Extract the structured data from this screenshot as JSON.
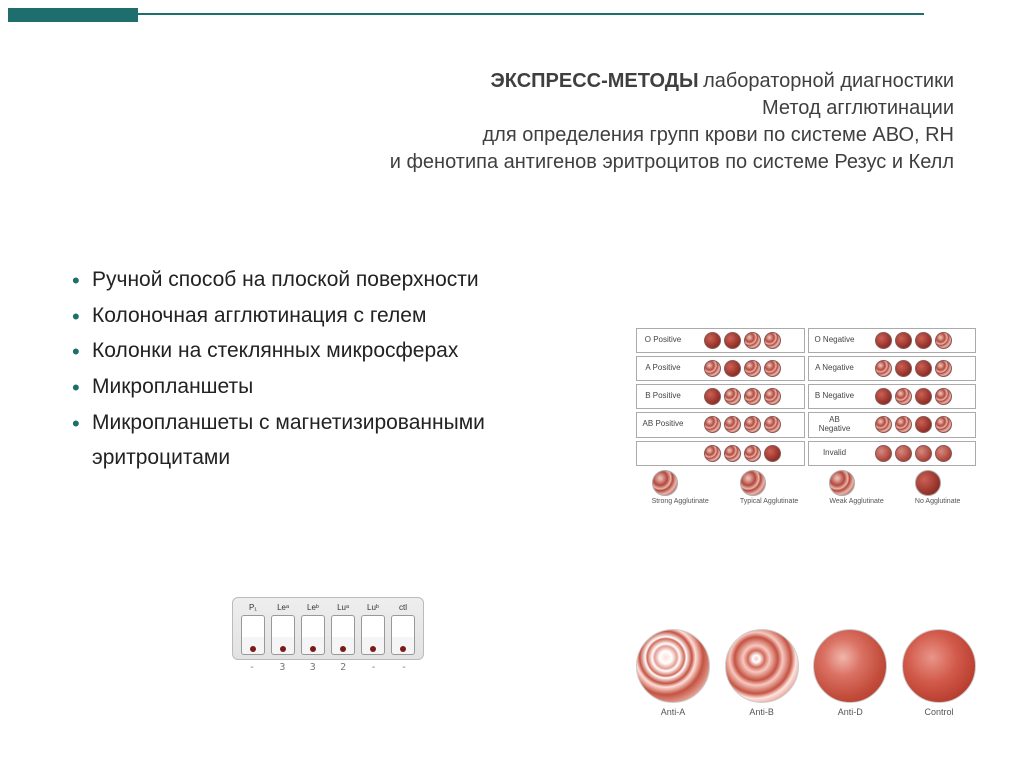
{
  "header": {
    "line1_bold": "ЭКСПРЕСС-МЕТОДЫ",
    "line1_rest": "лабораторной диагностики",
    "line2": "Метод агглютинации",
    "line3": "для определения групп крови по системе АВО, RH",
    "line4": "и фенотипа антигенов эритроцитов по системе Резус и Келл"
  },
  "bullets": [
    "Ручной способ на плоской поверхности",
    "Колоночная агглютинация с гелем",
    "Колонки на стеклянных микросферах",
    "Микропланшеты",
    "Микропланшеты с магнетизированными эритроцитами"
  ],
  "cassette": {
    "tube_labels": [
      "P₁",
      "Leᵃ",
      "Leᵇ",
      "Luᵃ",
      "Luᵇ",
      "ctl"
    ],
    "values": [
      "-",
      "3",
      "3",
      "2",
      "-",
      "-"
    ]
  },
  "agg_chart": {
    "rows": [
      {
        "label": "O Positive",
        "pattern": [
          "smooth",
          "smooth",
          "agg",
          "agg"
        ],
        "right_label": "O Negative",
        "right_pattern": [
          "smooth",
          "smooth",
          "smooth",
          "agg"
        ]
      },
      {
        "label": "A Positive",
        "pattern": [
          "agg",
          "smooth",
          "agg",
          "agg"
        ],
        "right_label": "A Negative",
        "right_pattern": [
          "agg",
          "smooth",
          "smooth",
          "agg"
        ]
      },
      {
        "label": "B Positive",
        "pattern": [
          "smooth",
          "agg",
          "agg",
          "agg"
        ],
        "right_label": "B Negative",
        "right_pattern": [
          "smooth",
          "agg",
          "smooth",
          "agg"
        ]
      },
      {
        "label": "AB Positive",
        "pattern": [
          "agg",
          "agg",
          "agg",
          "agg"
        ],
        "right_label": "AB Negative",
        "right_pattern": [
          "agg",
          "agg",
          "smooth",
          "agg"
        ]
      },
      {
        "label": "",
        "pattern": [
          "agg",
          "agg",
          "agg",
          "smooth"
        ],
        "right_label": "Invalid",
        "right_pattern": [
          "neg",
          "neg",
          "neg",
          "neg"
        ]
      }
    ],
    "legend": [
      "Strong Agglutinate",
      "Typical Agglutinate",
      "Weak Agglutinate",
      "No Agglutinate"
    ]
  },
  "big_circles": [
    {
      "label": "Anti-A",
      "cls": "c-antiA"
    },
    {
      "label": "Anti-B",
      "cls": "c-antiB"
    },
    {
      "label": "Anti-D",
      "cls": "c-antiD"
    },
    {
      "label": "Control",
      "cls": "c-control"
    }
  ],
  "colors": {
    "accent": "#1f6e6e",
    "text": "#3f3f3f"
  }
}
